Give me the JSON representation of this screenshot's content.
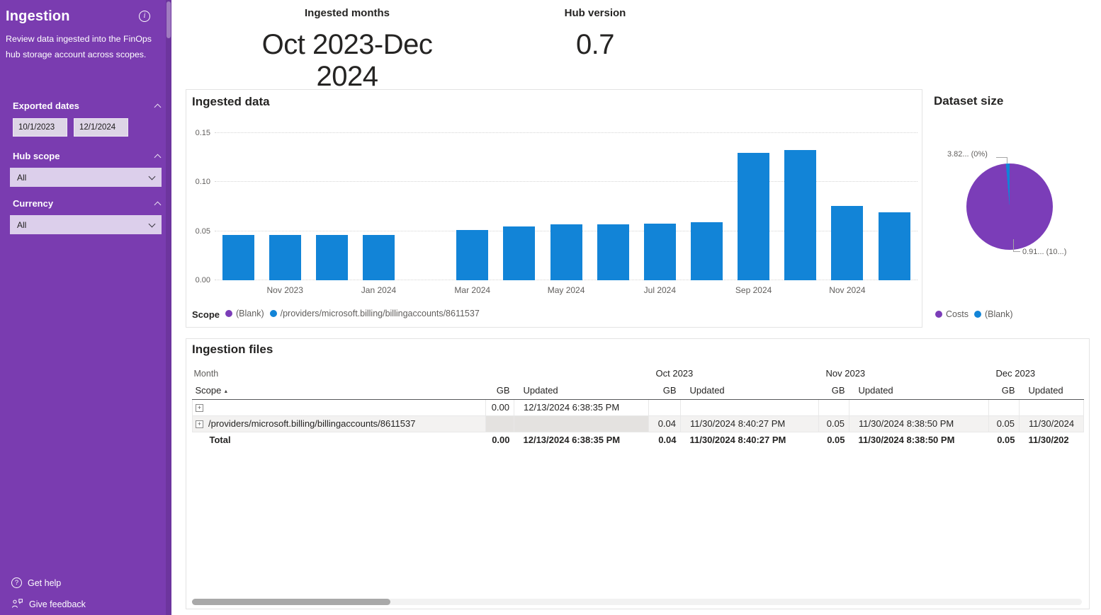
{
  "colors": {
    "accent_purple": "#7a3cb0",
    "bar_blue": "#1284d7",
    "pie_purple": "#7b3db8"
  },
  "sidebar": {
    "title": "Ingestion",
    "description": "Review data ingested into the FinOps hub storage account across scopes.",
    "exported_dates_label": "Exported dates",
    "date_start": "10/1/2023",
    "date_end": "12/1/2024",
    "hub_scope_label": "Hub scope",
    "hub_scope_value": "All",
    "currency_label": "Currency",
    "currency_value": "All",
    "get_help": "Get help",
    "give_feedback": "Give feedback"
  },
  "kpis": {
    "months_label": "Ingested months",
    "months_value": "Oct 2023-Dec 2024",
    "version_label": "Hub version",
    "version_value": "0.7"
  },
  "chart_data": [
    {
      "type": "bar",
      "title": "Ingested data",
      "x": [
        "Oct 2023",
        "Nov 2023",
        "Dec 2023",
        "Jan 2024",
        "Feb 2024",
        "Mar 2024",
        "Apr 2024",
        "May 2024",
        "Jun 2024",
        "Jul 2024",
        "Aug 2024",
        "Sep 2024",
        "Oct 2024",
        "Nov 2024",
        "Dec 2024"
      ],
      "x_tick_labels": [
        "",
        "Nov 2023",
        "",
        "Jan 2024",
        "",
        "Mar 2024",
        "",
        "May 2024",
        "",
        "Jul 2024",
        "",
        "Sep 2024",
        "",
        "Nov 2024",
        ""
      ],
      "values": [
        0.046,
        0.046,
        0.046,
        0.046,
        0,
        0.051,
        0.055,
        0.057,
        0.057,
        0.058,
        0.059,
        0.13,
        0.133,
        0.076,
        0.069
      ],
      "ylim": [
        0,
        0.15
      ],
      "yticks": [
        "0.00",
        "0.05",
        "0.10",
        "0.15"
      ],
      "bar_color": "#1284d7",
      "series_label": "Scope",
      "legend": [
        {
          "label": "(Blank)",
          "color": "#7b3db8"
        },
        {
          "label": "/providers/microsoft.billing/billingaccounts/8611537",
          "color": "#1284d7"
        }
      ]
    },
    {
      "type": "pie",
      "title": "Dataset size",
      "slices": [
        {
          "label": "Costs",
          "share_pct": 99.5,
          "color": "#7b3db8"
        },
        {
          "label": "(Blank)",
          "share_pct": 0.5,
          "color": "#1284d7"
        }
      ],
      "callouts": [
        "3.82... (0%)",
        "0.91... (10...)"
      ],
      "legend": [
        {
          "label": "Costs",
          "color": "#7b3db8"
        },
        {
          "label": "(Blank)",
          "color": "#1284d7"
        }
      ]
    }
  ],
  "files_table": {
    "title": "Ingestion files",
    "header": {
      "month": "Month",
      "scope": "Scope",
      "gb": "GB",
      "updated": "Updated",
      "month_groups": [
        "Oct 2023",
        "Nov 2023",
        "Dec 2023"
      ]
    },
    "rows": [
      {
        "scope": "",
        "c": [
          "0.00",
          "12/13/2024 6:38:35 PM",
          "",
          "",
          "",
          "",
          "",
          ""
        ]
      },
      {
        "scope": "/providers/microsoft.billing/billingaccounts/8611537",
        "c": [
          "",
          "",
          "0.04",
          "11/30/2024 8:40:27 PM",
          "0.05",
          "11/30/2024 8:38:50 PM",
          "0.05",
          "11/30/2024"
        ]
      },
      {
        "scope": "Total",
        "c": [
          "0.00",
          "12/13/2024 6:38:35 PM",
          "0.04",
          "11/30/2024 8:40:27 PM",
          "0.05",
          "11/30/2024 8:38:50 PM",
          "0.05",
          "11/30/202"
        ]
      }
    ]
  }
}
